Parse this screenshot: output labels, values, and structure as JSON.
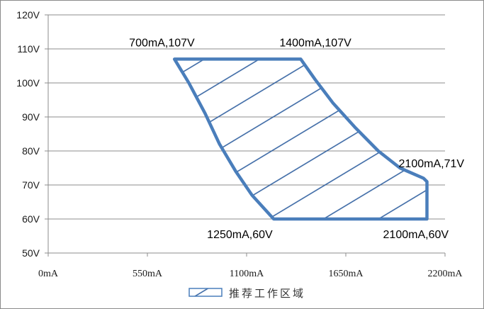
{
  "chart_data": {
    "type": "area",
    "title": "",
    "xlabel": "",
    "ylabel": "",
    "xlim": [
      0,
      2200
    ],
    "ylim": [
      50,
      120
    ],
    "x_ticks": [
      "0mA",
      "550mA",
      "1100mA",
      "1650mA",
      "2200mA"
    ],
    "x_tick_values": [
      0,
      550,
      1100,
      1650,
      2200
    ],
    "y_ticks": [
      "50V",
      "60V",
      "70V",
      "80V",
      "90V",
      "100V",
      "110V",
      "120V"
    ],
    "y_tick_values": [
      50,
      60,
      70,
      80,
      90,
      100,
      110,
      120
    ],
    "grid": "horizontal",
    "legend_position": "bottom",
    "series": [
      {
        "name": "推荐工作区域",
        "fill": "diagonal-hatch",
        "color": "#4a7ebb",
        "points": [
          {
            "x": 700,
            "y": 107
          },
          {
            "x": 1400,
            "y": 107
          },
          {
            "x": 1480,
            "y": 101
          },
          {
            "x": 1580,
            "y": 94
          },
          {
            "x": 1700,
            "y": 87
          },
          {
            "x": 1830,
            "y": 80
          },
          {
            "x": 1950,
            "y": 75
          },
          {
            "x": 2080,
            "y": 72
          },
          {
            "x": 2100,
            "y": 71
          },
          {
            "x": 2100,
            "y": 60
          },
          {
            "x": 1250,
            "y": 60
          },
          {
            "x": 1130,
            "y": 67
          },
          {
            "x": 1040,
            "y": 74
          },
          {
            "x": 950,
            "y": 82
          },
          {
            "x": 870,
            "y": 91
          },
          {
            "x": 780,
            "y": 100
          },
          {
            "x": 700,
            "y": 107
          }
        ]
      }
    ],
    "annotations": [
      {
        "text": "700mA,107V",
        "x": 700,
        "y": 107
      },
      {
        "text": "1400mA,107V",
        "x": 1400,
        "y": 107
      },
      {
        "text": "2100mA,71V",
        "x": 2100,
        "y": 71
      },
      {
        "text": "1250mA,60V",
        "x": 1250,
        "y": 60
      },
      {
        "text": "2100mA,60V",
        "x": 2100,
        "y": 60
      }
    ]
  }
}
